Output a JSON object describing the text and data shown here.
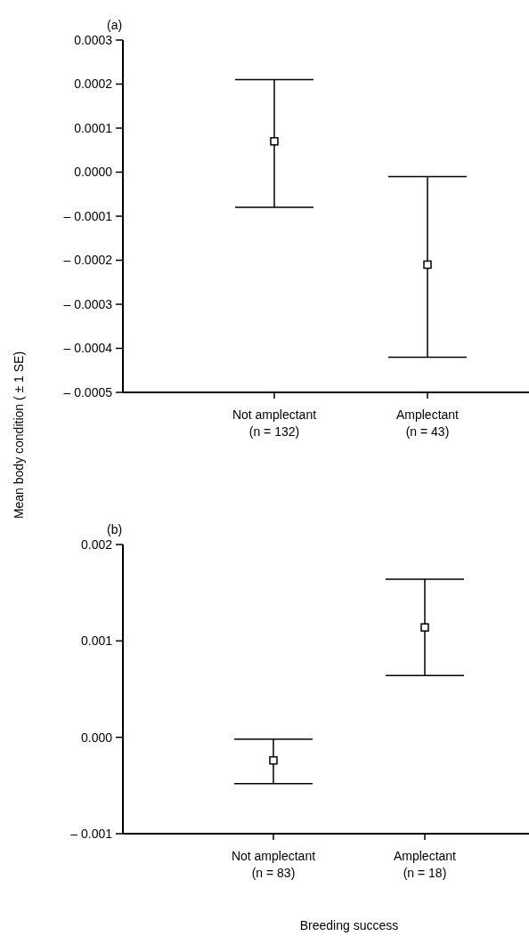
{
  "chart_data": [
    {
      "type": "scatter",
      "title": "(a)",
      "ylabel": "Mean body condition ( ± 1 SE)",
      "categories": [
        "Not amplectant\n(n = 132)",
        "Amplectant\n(n = 43)"
      ],
      "marker": "square",
      "ylim": [
        -0.0005,
        0.0003
      ],
      "series": [
        {
          "color": "#000000",
          "values": [
            7e-05,
            -0.00021
          ],
          "errors": [
            [
              -8e-05,
              0.00021
            ],
            [
              -0.00042,
              -1e-05
            ]
          ]
        }
      ],
      "yticks": [
        {
          "value": 0.0003,
          "label": "0.0003"
        },
        {
          "value": 0.0002,
          "label": "0.0002"
        },
        {
          "value": 0.0001,
          "label": "0.0001"
        },
        {
          "value": 0,
          "label": "0.0000"
        },
        {
          "value": -0.0001,
          "label": "– 0.0001"
        },
        {
          "value": -0.0002,
          "label": "– 0.0002"
        },
        {
          "value": -0.0003,
          "label": "– 0.0003"
        },
        {
          "value": -0.0004,
          "label": "– 0.0004"
        },
        {
          "value": -0.0005,
          "label": "– 0.0005"
        }
      ],
      "grid": false
    },
    {
      "type": "scatter",
      "title": "(b)",
      "xlabel": "Breeding success",
      "categories": [
        "Not amplectant\n(n = 83)",
        "Amplectant\n(n = 18)"
      ],
      "marker": "square",
      "ylim": [
        -0.001,
        0.002
      ],
      "series": [
        {
          "color": "#000000",
          "values": [
            -0.00024,
            0.00114
          ],
          "errors": [
            [
              -0.00048,
              -2e-05
            ],
            [
              0.00064,
              0.00164
            ]
          ]
        }
      ],
      "yticks": [
        {
          "value": 0.002,
          "label": "0.002"
        },
        {
          "value": 0.001,
          "label": "0.001"
        },
        {
          "value": 0,
          "label": "0.000"
        },
        {
          "value": -0.001,
          "label": "– 0.001"
        }
      ],
      "grid": false
    }
  ]
}
